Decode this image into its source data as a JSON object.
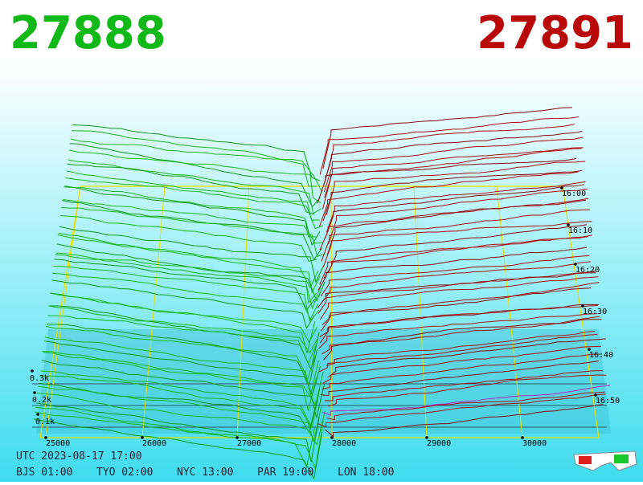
{
  "header": {
    "bid": "27888",
    "ask": "27891"
  },
  "price_axis": {
    "ticks": [
      "25000",
      "26000",
      "27000",
      "28000",
      "29000",
      "30000"
    ]
  },
  "time_axis": {
    "ticks": [
      "16:00",
      "16:10",
      "16:20",
      "16:30",
      "16:40",
      "16:50"
    ]
  },
  "volume_axis": {
    "ticks": [
      "0.3k",
      "0.2k",
      "0.1k"
    ]
  },
  "footer": {
    "utc": "UTC 2023-08-17 17:00",
    "zones": [
      "BJS 01:00",
      "TYO 02:00",
      "NYC 13:00",
      "PAR 19:00",
      "LON 18:00"
    ]
  }
}
